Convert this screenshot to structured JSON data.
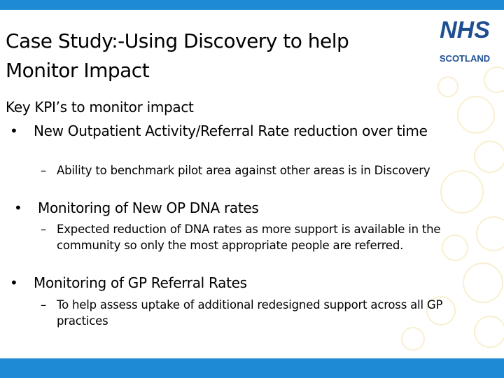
{
  "header": {
    "title": "Case Study:-Using Discovery to help Monitor Impact",
    "logo": {
      "name": "NHS",
      "region": "SCOTLAND"
    }
  },
  "body": {
    "intro": "Key KPI’s to monitor impact",
    "items": [
      {
        "text": "New Outpatient Activity/Referral Rate reduction over time",
        "subitems": [
          "Ability to benchmark pilot area against other areas is in Discovery"
        ]
      },
      {
        "text": "Monitoring of New OP DNA rates",
        "subitems": [
          "Expected reduction of DNA rates as more support is available in the community so only the most appropriate people are referred."
        ]
      },
      {
        "text": "Monitoring of GP Referral Rates",
        "subitems": [
          "To help assess uptake of additional redesigned support across all GP practices"
        ]
      }
    ]
  }
}
